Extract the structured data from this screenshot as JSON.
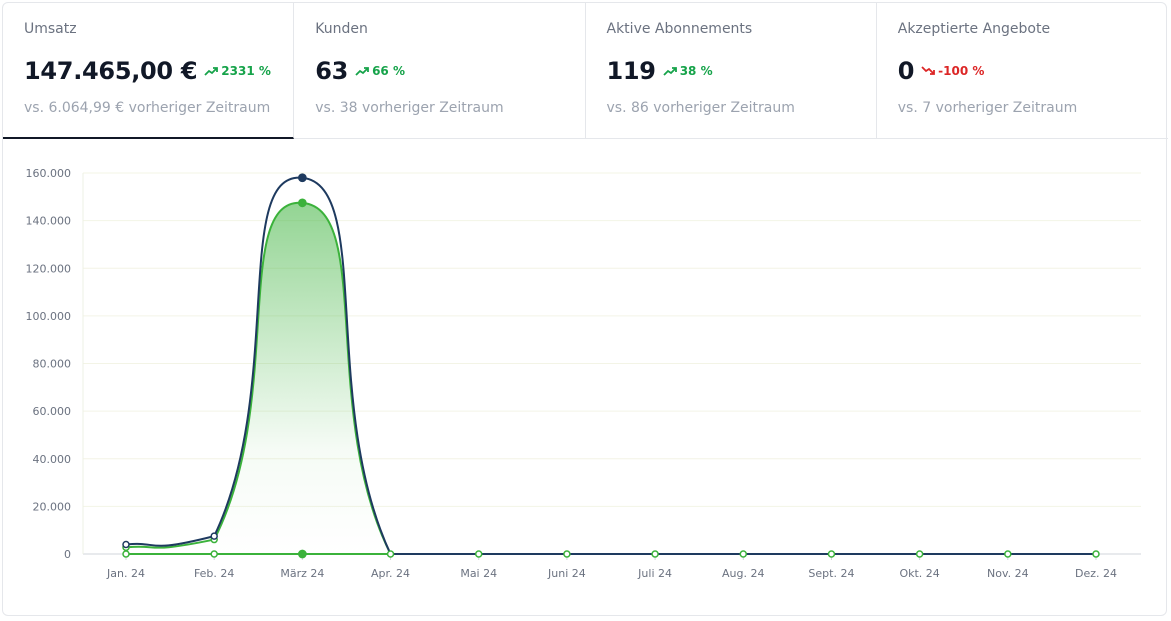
{
  "kpis": [
    {
      "label": "Umsatz",
      "value": "147.465,00 €",
      "change": "2331 %",
      "trend": "up",
      "compare": "vs. 6.064,99 € vorheriger Zeitraum",
      "active": true
    },
    {
      "label": "Kunden",
      "value": "63",
      "change": "66 %",
      "trend": "up",
      "compare": "vs. 38 vorheriger Zeitraum",
      "active": false
    },
    {
      "label": "Aktive Abonnements",
      "value": "119",
      "change": "38 %",
      "trend": "up",
      "compare": "vs. 86 vorheriger Zeitraum",
      "active": false
    },
    {
      "label": "Akzeptierte Angebote",
      "value": "0",
      "change": "-100 %",
      "trend": "down",
      "compare": "vs. 7 vorheriger Zeitraum",
      "active": false
    }
  ],
  "colors": {
    "up": "#16a34a",
    "down": "#dc2626",
    "navy": "#1e3a5f",
    "green": "#3bb23b",
    "grid": "#f3f4e6"
  },
  "chart_data": {
    "type": "area",
    "categories": [
      "Jan. 24",
      "Feb. 24",
      "März 24",
      "Apr. 24",
      "Mai 24",
      "Juni 24",
      "Juli 24",
      "Aug. 24",
      "Sept. 24",
      "Okt. 24",
      "Nov. 24",
      "Dez. 24"
    ],
    "yticks": [
      "0",
      "20.000",
      "40.000",
      "60.000",
      "80.000",
      "100.000",
      "120.000",
      "140.000",
      "160.000"
    ],
    "ylim": [
      0,
      160000
    ],
    "series": [
      {
        "values": [
          4000,
          7500,
          158000,
          0,
          0,
          0,
          0,
          0,
          0,
          0,
          0,
          0
        ],
        "color": "#1e3a5f",
        "fill": false
      },
      {
        "values": [
          2800,
          6065,
          147465,
          0,
          0,
          0,
          0,
          0,
          0,
          0,
          0,
          0
        ],
        "color": "#3bb23b",
        "fill": true
      },
      {
        "values": [
          0,
          0,
          0,
          0,
          0,
          0,
          0,
          0,
          0,
          0,
          0,
          0
        ],
        "color": "#3bb23b",
        "fill": false
      }
    ],
    "grid": true,
    "legend": "none"
  }
}
